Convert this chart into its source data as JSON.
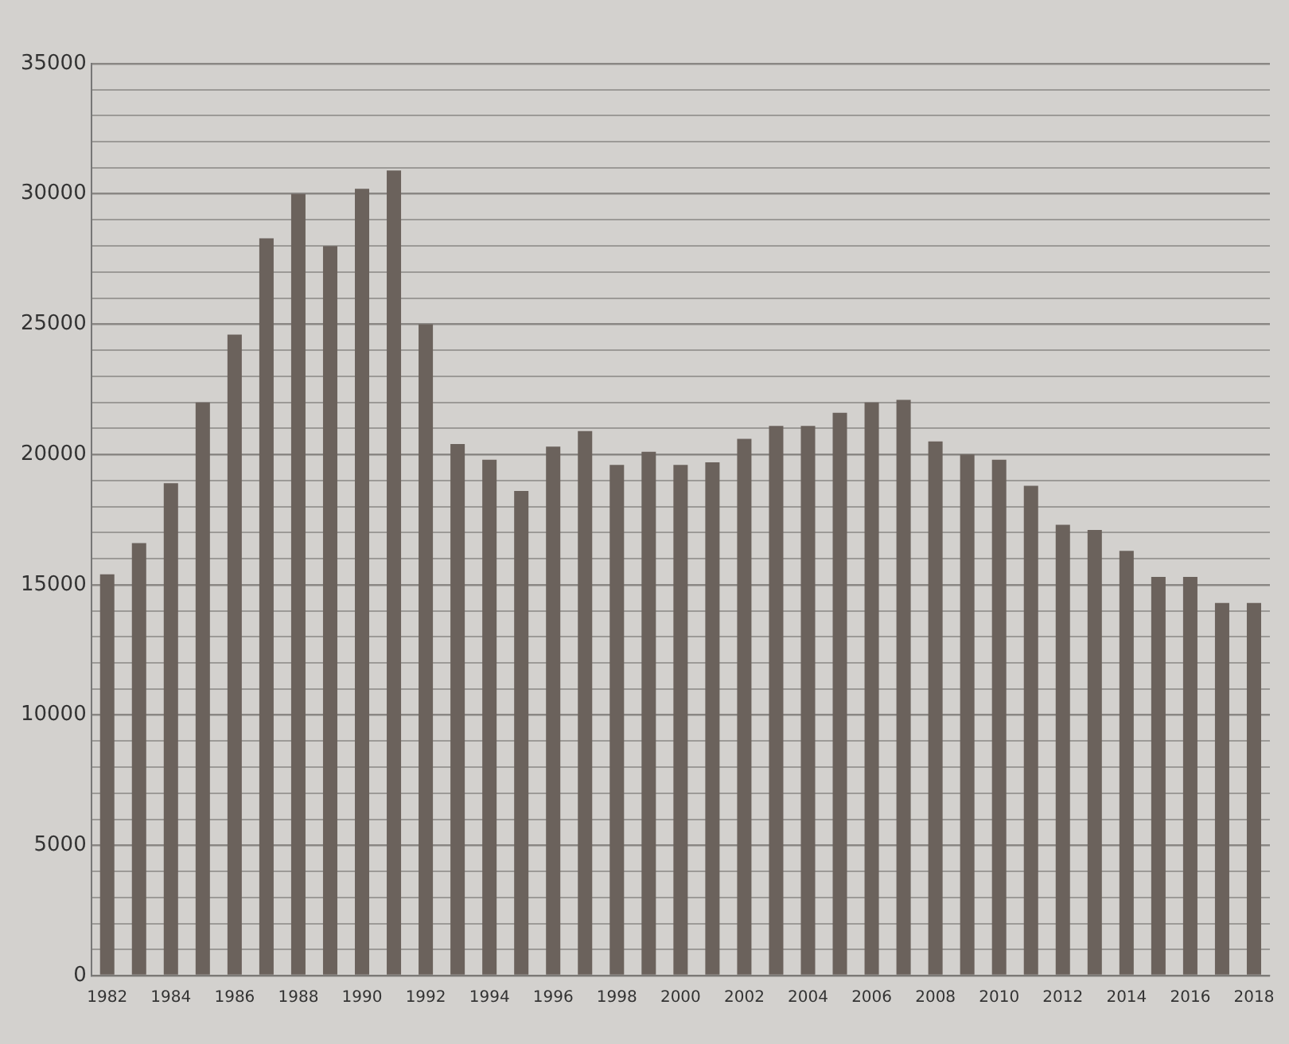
{
  "chart_data": {
    "type": "bar",
    "categories": [
      "1982",
      null,
      "1984",
      null,
      "1986",
      null,
      "1988",
      null,
      "1990",
      null,
      "1992",
      null,
      "1994",
      null,
      "1996",
      null,
      "1998",
      null,
      "2000",
      null,
      "2002",
      null,
      "2004",
      null,
      "2006",
      null,
      "2008",
      null,
      "2010",
      null,
      "2012",
      null,
      "2014",
      null,
      "2016",
      null,
      "2018"
    ],
    "values": [
      15400,
      16600,
      18900,
      22000,
      24600,
      28300,
      30000,
      28000,
      30200,
      30900,
      25000,
      20400,
      19800,
      18600,
      20300,
      20900,
      19600,
      20100,
      19600,
      19700,
      20600,
      21100,
      21100,
      21600,
      22000,
      22100,
      20500,
      20000,
      19800,
      18800,
      17300,
      17100,
      16300,
      15300,
      15300,
      14300,
      14300
    ],
    "color": "#6b625c",
    "ylim": [
      0,
      35000
    ],
    "yticks": [
      0,
      {
        "value": 1000,
        "label": null
      },
      {
        "value": 2000,
        "label": null
      },
      {
        "value": 3000,
        "label": null
      },
      {
        "value": 4000,
        "label": null
      },
      5000,
      {
        "value": 6000,
        "label": null
      },
      {
        "value": 7000,
        "label": null
      },
      {
        "value": 8000,
        "label": null
      },
      {
        "value": 9000,
        "label": null
      },
      10000,
      {
        "value": 11000,
        "label": null
      },
      {
        "value": 12000,
        "label": null
      },
      {
        "value": 13000,
        "label": null
      },
      {
        "value": 14000,
        "label": null
      },
      15000,
      {
        "value": 16000,
        "label": null
      },
      {
        "value": 17000,
        "label": null
      },
      {
        "value": 18000,
        "label": null
      },
      {
        "value": 19000,
        "label": null
      },
      20000,
      {
        "value": 21000,
        "label": null
      },
      {
        "value": 22000,
        "label": null
      },
      {
        "value": 23000,
        "label": null
      },
      {
        "value": 24000,
        "label": null
      },
      25000,
      {
        "value": 26000,
        "label": null
      },
      {
        "value": 27000,
        "label": null
      },
      {
        "value": 28000,
        "label": null
      },
      {
        "value": 29000,
        "label": null
      },
      30000,
      {
        "value": 31000,
        "label": null
      },
      {
        "value": 32000,
        "label": null
      },
      {
        "value": 33000,
        "label": null
      },
      {
        "value": 34000,
        "label": null
      },
      35000
    ],
    "grid": "y"
  }
}
